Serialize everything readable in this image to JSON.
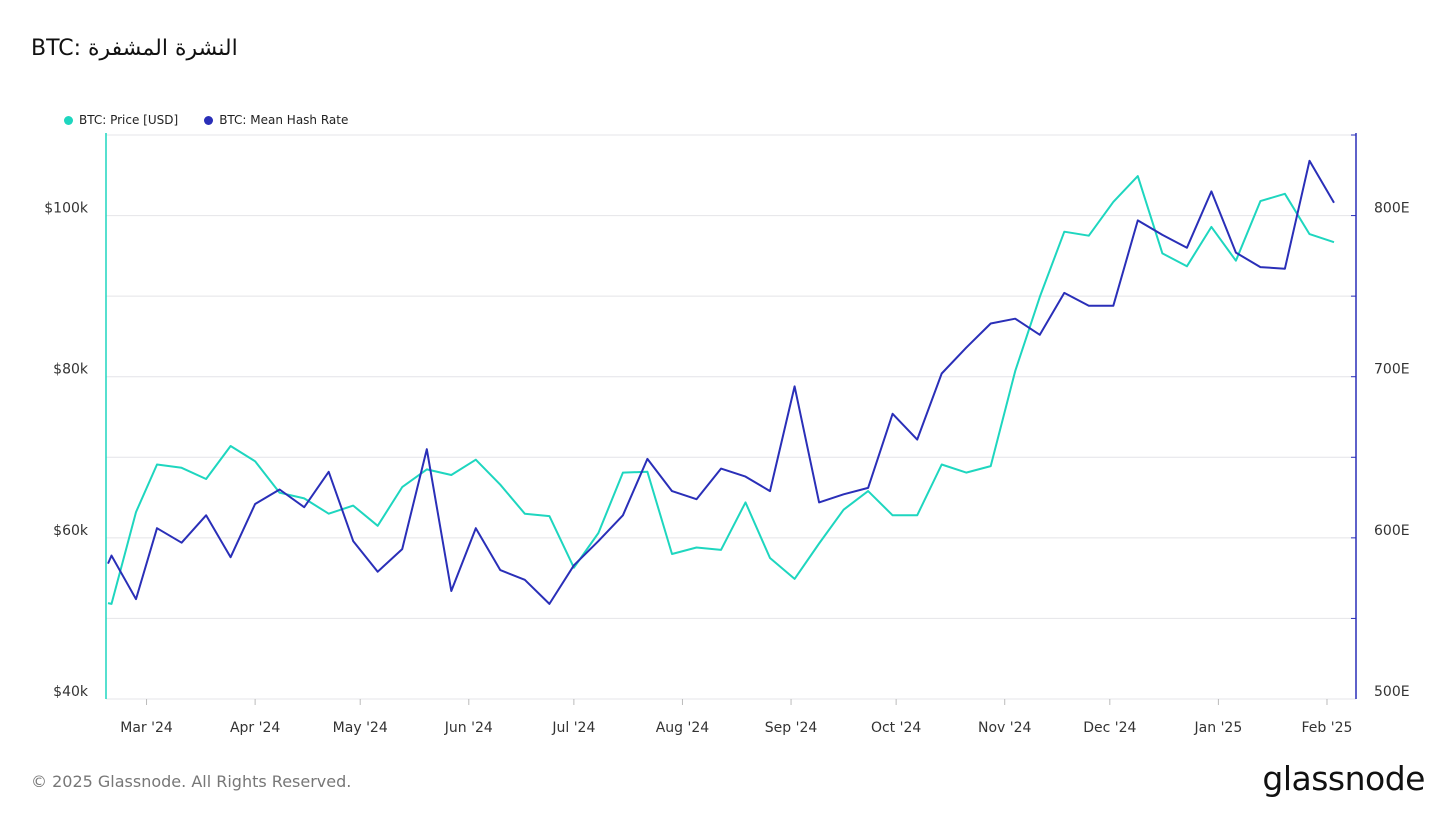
{
  "header": {
    "title": "BTC: النشرة المشفرة"
  },
  "legend": [
    {
      "label": "BTC: Price [USD]",
      "color": "#1ed6bf"
    },
    {
      "label": "BTC: Mean Hash Rate",
      "color": "#2a2fb8"
    }
  ],
  "footer": {
    "copyright": "© 2025 Glassnode. All Rights Reserved.",
    "brand": "glassnode"
  },
  "chart_data": {
    "type": "line",
    "title": "BTC: النشرة المشفرة",
    "x_start_date": "2024-02-19",
    "x_end_date": "2025-02-07",
    "x_ticks": [
      {
        "label": "Mar '24",
        "date": "2024-03-01"
      },
      {
        "label": "Apr '24",
        "date": "2024-04-01"
      },
      {
        "label": "May '24",
        "date": "2024-05-01"
      },
      {
        "label": "Jun '24",
        "date": "2024-06-01"
      },
      {
        "label": "Jul '24",
        "date": "2024-07-01"
      },
      {
        "label": "Aug '24",
        "date": "2024-08-01"
      },
      {
        "label": "Sep '24",
        "date": "2024-09-01"
      },
      {
        "label": "Oct '24",
        "date": "2024-10-01"
      },
      {
        "label": "Nov '24",
        "date": "2024-11-01"
      },
      {
        "label": "Dec '24",
        "date": "2024-12-01"
      },
      {
        "label": "Jan '25",
        "date": "2025-01-01"
      },
      {
        "label": "Feb '25",
        "date": "2025-02-01"
      }
    ],
    "y_left": {
      "min": 40000,
      "max": 110000,
      "ticks": [
        {
          "value": 40000,
          "label": "$40k"
        },
        {
          "value": 60000,
          "label": "$60k"
        },
        {
          "value": 80000,
          "label": "$80k"
        },
        {
          "value": 100000,
          "label": "$100k"
        }
      ],
      "gridlines": [
        50000,
        60000,
        70000,
        80000,
        90000,
        100000,
        110000
      ]
    },
    "y_right": {
      "min": 500,
      "max": 850,
      "ticks": [
        {
          "value": 500,
          "label": "500E"
        },
        {
          "value": 600,
          "label": "600E"
        },
        {
          "value": 700,
          "label": "700E"
        },
        {
          "value": 800,
          "label": "800E"
        }
      ]
    },
    "grid": true,
    "legend_position": "top-left",
    "series": [
      {
        "name": "BTC: Price [USD]",
        "axis": "left",
        "color": "#1ed6bf",
        "points": [
          [
            "2024-02-19",
            51900
          ],
          [
            "2024-02-20",
            51800
          ],
          [
            "2024-02-27",
            63200
          ],
          [
            "2024-03-04",
            69100
          ],
          [
            "2024-03-11",
            68700
          ],
          [
            "2024-03-18",
            67300
          ],
          [
            "2024-03-25",
            71400
          ],
          [
            "2024-04-01",
            69500
          ],
          [
            "2024-04-08",
            65600
          ],
          [
            "2024-04-15",
            64900
          ],
          [
            "2024-04-22",
            63000
          ],
          [
            "2024-04-29",
            64000
          ],
          [
            "2024-05-06",
            61500
          ],
          [
            "2024-05-13",
            66300
          ],
          [
            "2024-05-20",
            68500
          ],
          [
            "2024-05-27",
            67800
          ],
          [
            "2024-06-03",
            69700
          ],
          [
            "2024-06-10",
            66600
          ],
          [
            "2024-06-17",
            63000
          ],
          [
            "2024-06-24",
            62700
          ],
          [
            "2024-07-01",
            56300
          ],
          [
            "2024-07-08",
            60600
          ],
          [
            "2024-07-15",
            68100
          ],
          [
            "2024-07-22",
            68200
          ],
          [
            "2024-07-29",
            58000
          ],
          [
            "2024-08-05",
            58800
          ],
          [
            "2024-08-12",
            58500
          ],
          [
            "2024-08-19",
            64400
          ],
          [
            "2024-08-26",
            57500
          ],
          [
            "2024-09-02",
            54900
          ],
          [
            "2024-09-09",
            59300
          ],
          [
            "2024-09-16",
            63500
          ],
          [
            "2024-09-23",
            65800
          ],
          [
            "2024-09-30",
            62800
          ],
          [
            "2024-10-07",
            62800
          ],
          [
            "2024-10-14",
            69100
          ],
          [
            "2024-10-21",
            68100
          ],
          [
            "2024-10-28",
            68900
          ],
          [
            "2024-11-04",
            80700
          ],
          [
            "2024-11-11",
            89900
          ],
          [
            "2024-11-18",
            98000
          ],
          [
            "2024-11-25",
            97500
          ],
          [
            "2024-12-02",
            101700
          ],
          [
            "2024-12-09",
            104900
          ],
          [
            "2024-12-16",
            95300
          ],
          [
            "2024-12-23",
            93700
          ],
          [
            "2024-12-30",
            98600
          ],
          [
            "2025-01-06",
            94400
          ],
          [
            "2025-01-13",
            101800
          ],
          [
            "2025-01-20",
            102700
          ],
          [
            "2025-01-27",
            97700
          ],
          [
            "2025-02-03",
            96700
          ]
        ]
      },
      {
        "name": "BTC: Mean Hash Rate",
        "axis": "right",
        "color": "#2a2fb8",
        "points": [
          [
            "2024-02-19",
            584
          ],
          [
            "2024-02-20",
            589
          ],
          [
            "2024-02-27",
            562
          ],
          [
            "2024-03-04",
            606
          ],
          [
            "2024-03-11",
            597
          ],
          [
            "2024-03-18",
            614
          ],
          [
            "2024-03-25",
            588
          ],
          [
            "2024-04-01",
            621
          ],
          [
            "2024-04-08",
            630
          ],
          [
            "2024-04-15",
            619
          ],
          [
            "2024-04-22",
            641
          ],
          [
            "2024-04-29",
            598
          ],
          [
            "2024-05-06",
            579
          ],
          [
            "2024-05-13",
            593
          ],
          [
            "2024-05-20",
            655
          ],
          [
            "2024-05-27",
            567
          ],
          [
            "2024-06-03",
            606
          ],
          [
            "2024-06-10",
            580
          ],
          [
            "2024-06-17",
            574
          ],
          [
            "2024-06-24",
            559
          ],
          [
            "2024-07-01",
            583
          ],
          [
            "2024-07-08",
            598
          ],
          [
            "2024-07-15",
            614
          ],
          [
            "2024-07-22",
            649
          ],
          [
            "2024-07-29",
            629
          ],
          [
            "2024-08-05",
            624
          ],
          [
            "2024-08-12",
            643
          ],
          [
            "2024-08-19",
            638
          ],
          [
            "2024-08-26",
            629
          ],
          [
            "2024-09-02",
            694
          ],
          [
            "2024-09-09",
            622
          ],
          [
            "2024-09-16",
            627
          ],
          [
            "2024-09-23",
            631
          ],
          [
            "2024-09-30",
            677
          ],
          [
            "2024-10-07",
            661
          ],
          [
            "2024-10-14",
            702
          ],
          [
            "2024-10-21",
            718
          ],
          [
            "2024-10-28",
            733
          ],
          [
            "2024-11-04",
            736
          ],
          [
            "2024-11-11",
            726
          ],
          [
            "2024-11-18",
            752
          ],
          [
            "2024-11-25",
            744
          ],
          [
            "2024-12-02",
            744
          ],
          [
            "2024-12-09",
            797
          ],
          [
            "2024-12-16",
            788
          ],
          [
            "2024-12-23",
            780
          ],
          [
            "2024-12-30",
            815
          ],
          [
            "2025-01-06",
            777
          ],
          [
            "2025-01-13",
            768
          ],
          [
            "2025-01-20",
            767
          ],
          [
            "2025-01-27",
            834
          ],
          [
            "2025-02-03",
            808
          ]
        ]
      }
    ]
  }
}
